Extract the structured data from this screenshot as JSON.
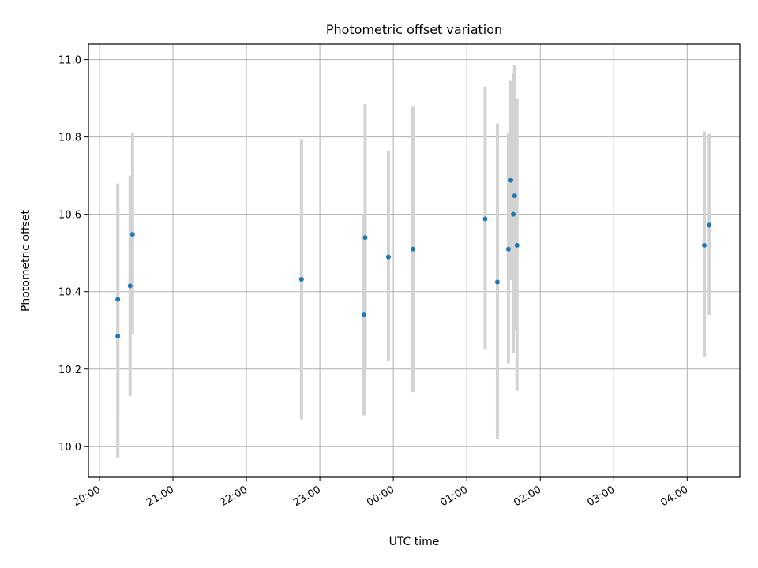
{
  "chart_data": {
    "type": "scatter",
    "title": "Photometric offset variation",
    "xlabel": "UTC time",
    "ylabel": "Photometric offset",
    "x_ticks": [
      "20:00",
      "21:00",
      "22:00",
      "23:00",
      "00:00",
      "01:00",
      "02:00",
      "03:00",
      "04:00"
    ],
    "y_ticks": [
      "10.0",
      "10.2",
      "10.4",
      "10.6",
      "10.8",
      "11.0"
    ],
    "y_tick_values": [
      10.0,
      10.2,
      10.4,
      10.6,
      10.8,
      11.0
    ],
    "xlim": [
      "19:51",
      "04:43"
    ],
    "ylim": [
      9.92,
      11.04
    ],
    "grid": true,
    "point_color": "#1f77b4",
    "errorbar_color": "#d3d3d3",
    "points": [
      {
        "x": "20:15",
        "y": 10.38,
        "ymin": 10.08,
        "ymax": 10.68
      },
      {
        "x": "20:15",
        "y": 10.285,
        "ymin": 9.97,
        "ymax": 10.6
      },
      {
        "x": "20:25",
        "y": 10.415,
        "ymin": 10.13,
        "ymax": 10.7
      },
      {
        "x": "20:27",
        "y": 10.548,
        "ymin": 10.29,
        "ymax": 10.81
      },
      {
        "x": "22:45",
        "y": 10.432,
        "ymin": 10.07,
        "ymax": 10.795
      },
      {
        "x": "23:36",
        "y": 10.34,
        "ymin": 10.08,
        "ymax": 10.6
      },
      {
        "x": "23:37",
        "y": 10.54,
        "ymin": 10.2,
        "ymax": 10.885
      },
      {
        "x": "23:56",
        "y": 10.49,
        "ymin": 10.22,
        "ymax": 10.765
      },
      {
        "x": "00:16",
        "y": 10.51,
        "ymin": 10.14,
        "ymax": 10.88
      },
      {
        "x": "01:15",
        "y": 10.588,
        "ymin": 10.25,
        "ymax": 10.93
      },
      {
        "x": "01:25",
        "y": 10.425,
        "ymin": 10.02,
        "ymax": 10.835
      },
      {
        "x": "01:34",
        "y": 10.51,
        "ymin": 10.215,
        "ymax": 10.81
      },
      {
        "x": "01:36",
        "y": 10.688,
        "ymin": 10.43,
        "ymax": 10.945
      },
      {
        "x": "01:38",
        "y": 10.6,
        "ymin": 10.24,
        "ymax": 10.965
      },
      {
        "x": "01:39",
        "y": 10.648,
        "ymin": 10.3,
        "ymax": 10.985
      },
      {
        "x": "01:41",
        "y": 10.52,
        "ymin": 10.145,
        "ymax": 10.9
      },
      {
        "x": "04:14",
        "y": 10.52,
        "ymin": 10.23,
        "ymax": 10.815
      },
      {
        "x": "04:18",
        "y": 10.572,
        "ymin": 10.34,
        "ymax": 10.808
      }
    ]
  }
}
